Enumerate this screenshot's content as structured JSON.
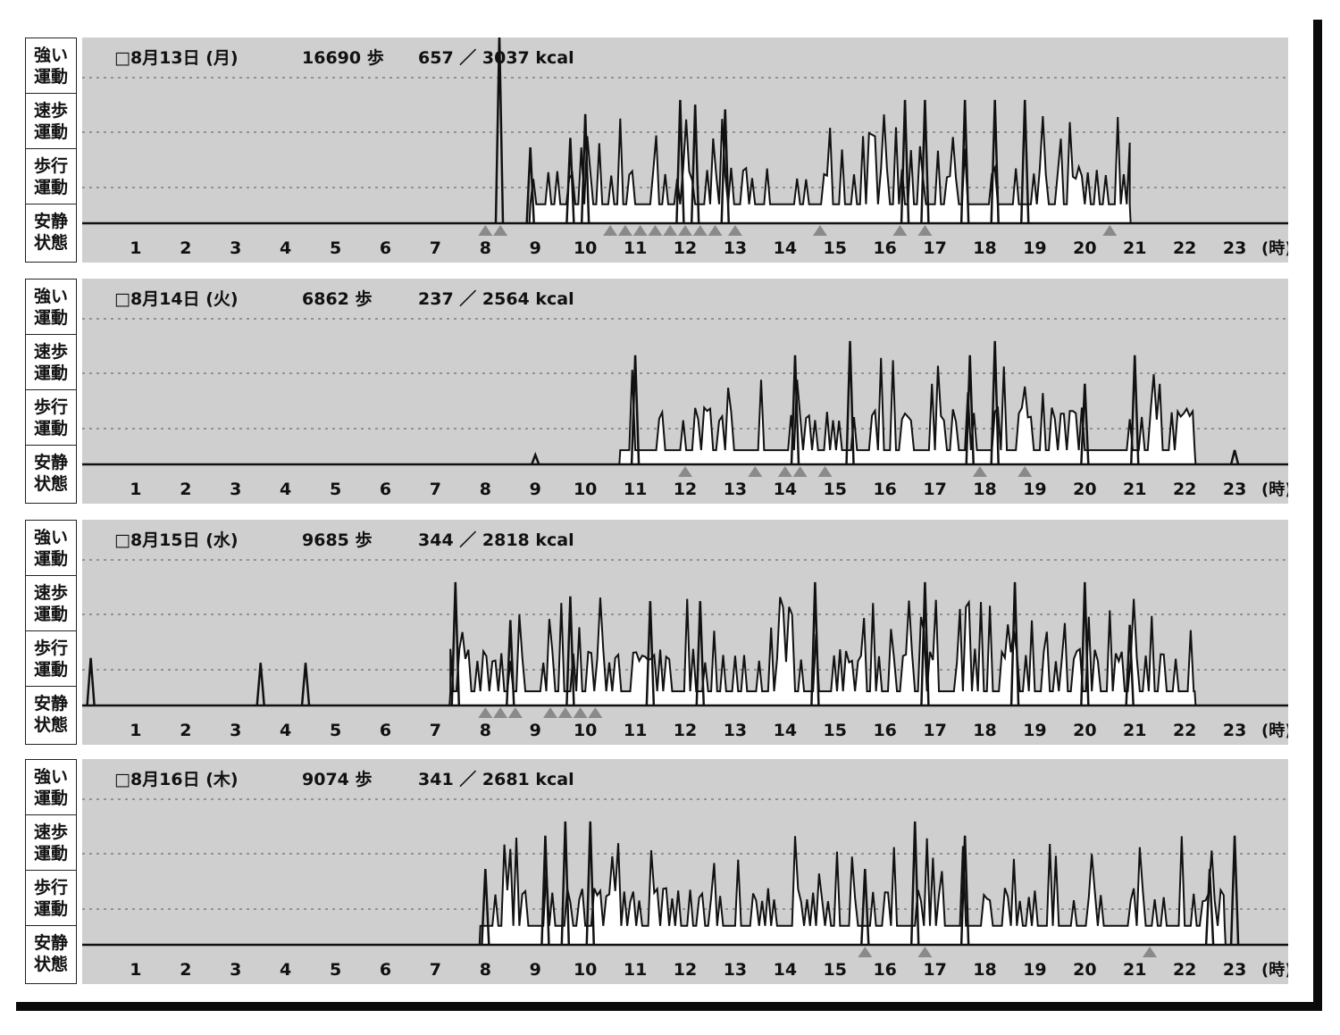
{
  "row_labels": [
    [
      "強い",
      "運動"
    ],
    [
      "速歩",
      "運動"
    ],
    [
      "歩行",
      "運動"
    ],
    [
      "安静",
      "状態"
    ]
  ],
  "hours": [
    "1",
    "2",
    "3",
    "4",
    "5",
    "6",
    "7",
    "8",
    "9",
    "10",
    "11",
    "12",
    "13",
    "14",
    "15",
    "16",
    "17",
    "18",
    "19",
    "20",
    "21",
    "22",
    "23"
  ],
  "hour_unit": "(時)",
  "colors": {
    "plot_bg": "#cfcfcf",
    "line": "#111111",
    "fill": "#ffffff",
    "marker": "#8a8a8a",
    "grid": "#444444"
  },
  "chart_data": [
    {
      "type": "line",
      "date": "□8月13日 (月)",
      "steps": "16690 歩",
      "kcal": "657 ／ 3037 kcal",
      "ylim": [
        0,
        4
      ],
      "active_range": [
        8.9,
        20.9
      ],
      "peaks": [
        [
          8.28,
          4
        ],
        [
          8.9,
          1.6
        ],
        [
          9.7,
          1.8
        ],
        [
          10.0,
          2.3
        ],
        [
          11.9,
          2.6
        ],
        [
          12.2,
          2.5
        ],
        [
          12.8,
          2.4
        ],
        [
          16.4,
          2.6
        ],
        [
          16.8,
          2.6
        ],
        [
          17.6,
          2.6
        ],
        [
          18.2,
          2.6
        ],
        [
          18.8,
          2.6
        ]
      ],
      "baseline_level": 0.4,
      "markers": [
        8.0,
        8.3,
        10.5,
        10.8,
        11.1,
        11.4,
        11.7,
        12.0,
        12.3,
        12.6,
        13.0,
        14.7,
        16.3,
        16.8,
        20.5
      ]
    },
    {
      "type": "line",
      "date": "□8月14日 (火)",
      "steps": "6862 歩",
      "kcal": "237 ／ 2564 kcal",
      "ylim": [
        0,
        4
      ],
      "active_range": [
        10.7,
        22.2
      ],
      "peaks": [
        [
          11.0,
          2.3
        ],
        [
          14.2,
          2.3
        ],
        [
          15.3,
          2.6
        ],
        [
          17.7,
          2.3
        ],
        [
          18.2,
          2.6
        ],
        [
          20.0,
          1.7
        ],
        [
          21.0,
          2.3
        ],
        [
          23.0,
          0.3
        ],
        [
          9.0,
          0.2
        ]
      ],
      "baseline_level": 0.3,
      "markers": [
        12.0,
        13.4,
        14.0,
        14.3,
        14.8,
        17.9,
        18.8
      ]
    },
    {
      "type": "line",
      "date": "□8月15日 (水)",
      "steps": "9685 歩",
      "kcal": "344 ／ 2818 kcal",
      "ylim": [
        0,
        4
      ],
      "active_range": [
        7.3,
        22.2
      ],
      "peaks": [
        [
          0.1,
          1.0
        ],
        [
          3.5,
          0.9
        ],
        [
          4.4,
          0.9
        ],
        [
          7.4,
          2.6
        ],
        [
          8.5,
          1.8
        ],
        [
          9.7,
          2.3
        ],
        [
          11.3,
          2.2
        ],
        [
          12.3,
          2.2
        ],
        [
          14.6,
          2.6
        ],
        [
          16.8,
          2.6
        ],
        [
          18.6,
          2.6
        ],
        [
          20.0,
          2.6
        ],
        [
          20.9,
          1.7
        ]
      ],
      "baseline_level": 0.3,
      "markers": [
        8.0,
        8.3,
        8.6,
        9.3,
        9.6,
        9.9,
        10.2
      ]
    },
    {
      "type": "line",
      "date": "□8月16日 (木)",
      "steps": "9074 歩",
      "kcal": "341 ／ 2681 kcal",
      "ylim": [
        0,
        4
      ],
      "active_range": [
        7.9,
        22.8
      ],
      "peaks": [
        [
          8.0,
          1.6
        ],
        [
          9.2,
          2.3
        ],
        [
          9.6,
          2.6
        ],
        [
          10.1,
          2.6
        ],
        [
          15.6,
          1.6
        ],
        [
          16.6,
          2.6
        ],
        [
          17.6,
          2.3
        ],
        [
          22.5,
          1.6
        ],
        [
          23.0,
          2.3
        ]
      ],
      "baseline_level": 0.4,
      "markers": [
        15.6,
        16.8,
        21.3
      ]
    }
  ]
}
